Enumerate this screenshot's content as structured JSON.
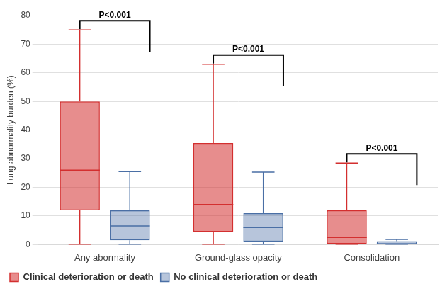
{
  "chart_data": {
    "type": "boxplot",
    "y_label": "Lung abnormality burden (%)",
    "categories": [
      "Any abormality",
      "Ground-glass opacity",
      "Consolidation"
    ],
    "series": [
      {
        "name": "Clinical deterioration or death",
        "color": "#d32f2f",
        "values": [
          {
            "min": 0,
            "q1": 12,
            "median": 26,
            "q3": 50,
            "max": 75
          },
          {
            "min": 0,
            "q1": 4.5,
            "median": 14,
            "q3": 35.5,
            "max": 63
          },
          {
            "min": 0,
            "q1": 0.3,
            "median": 2.5,
            "q3": 12,
            "max": 28.5
          }
        ]
      },
      {
        "name": "No clinical deterioration or death",
        "color": "#4a6fa5",
        "values": [
          {
            "min": 0,
            "q1": 1.5,
            "median": 6.5,
            "q3": 12,
            "max": 25.5
          },
          {
            "min": 0,
            "q1": 1,
            "median": 6,
            "q3": 11,
            "max": 25.3
          },
          {
            "min": 0,
            "q1": 0,
            "median": 0.3,
            "q3": 1.2,
            "max": 1.8
          }
        ]
      }
    ],
    "annotations": [
      {
        "text": "P<0.001",
        "category": "Any abormality"
      },
      {
        "text": "P<0.001",
        "category": "Ground-glass opacity"
      },
      {
        "text": "P<0.001",
        "category": "Consolidation"
      }
    ],
    "ylim": [
      0,
      80
    ],
    "yticks": [
      0,
      10,
      20,
      30,
      40,
      50,
      60,
      70,
      80
    ],
    "grid": true,
    "legend": "bottom"
  }
}
